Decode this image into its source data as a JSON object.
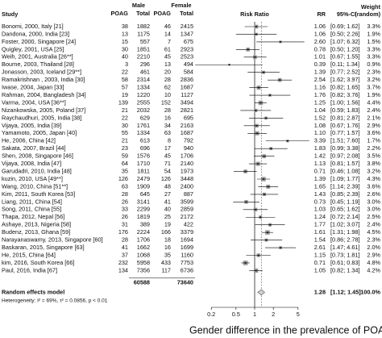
{
  "chart_data": {
    "type": "forest",
    "header": {
      "male": "Male",
      "female": "Female",
      "study": "Study",
      "events": "POAG",
      "total": "Total",
      "plot": "Risk Ratio",
      "rr": "RR",
      "ci": "95%-CI",
      "weight": [
        "Weight",
        "(random)"
      ]
    },
    "studies": [
      "Bonomi, 2000, Italy [21]",
      "Dandona, 2000, India [23]",
      "Foster, 2000, Singapore [24]",
      "Quigley, 2001, USA [25]",
      "Weih, 2001, Australia [26**]",
      "Bourne, 2003, Thailand [28]",
      "Jonasson, 2003, Iceland [29**]",
      "Ramakrishnan , 2003, India [30]",
      "Iwase, 2004, Japan [33]",
      "Rahman, 2004, Bangladesh [34]",
      "Varma, 2004, USA [36**]",
      "Nizankowska, 2005, Poland [37]",
      "Raychaudhuri, 2005, India [38]",
      "Vijaya, 2005, India [39]",
      "Yamamoto, 2005, Japan [40]",
      "He, 2006, China [42]",
      "Sakata, 2007, Brazil [44]",
      "Shen, 2008, Singapore [46]",
      "Vijaya, 2008, India [47]",
      "Garudadri, 2010, India [48]",
      "kuzin, 2010, USA [49**]",
      "Wang, 2010, China [51**]",
      "Kim, 2011, South Korea [53]",
      "Liang, 2011, China [54]",
      "Song, 2011, China [55]",
      "Thapa, 2012, Nepal [56]",
      "Ashaye, 2013, Nigeria [58]",
      "Budenz, 2013, Ghana [59]",
      "Narayanaswamy, 2013, Singapore [60]",
      "Baskaran, 2015, Singapore [63]",
      "He, 2015, China [64]",
      "kim, 2016, South Korea [66]",
      "Paul, 2016, India [67]"
    ],
    "male_events": [
      38,
      13,
      15,
      30,
      40,
      3,
      22,
      58,
      57,
      19,
      139,
      21,
      22,
      30,
      55,
      21,
      23,
      59,
      64,
      35,
      126,
      63,
      28,
      26,
      33,
      26,
      31,
      176,
      28,
      41,
      37,
      232,
      134
    ],
    "male_total": [
      1882,
      1175,
      557,
      1851,
      2210,
      296,
      461,
      2314,
      1334,
      1220,
      2555,
      2032,
      629,
      1761,
      1334,
      613,
      696,
      1576,
      1710,
      1811,
      2479,
      1909,
      645,
      3141,
      2299,
      1819,
      389,
      2224,
      1706,
      1662,
      1068,
      5958,
      7356
    ],
    "female_events": [
      46,
      14,
      7,
      61,
      45,
      13,
      20,
      28,
      62,
      10,
      152,
      28,
      16,
      34,
      63,
      8,
      17,
      45,
      71,
      54,
      126,
      48,
      27,
      41,
      40,
      25,
      19,
      166,
      18,
      16,
      35,
      433,
      117
    ],
    "female_total": [
      2415,
      1347,
      675,
      2923,
      2523,
      494,
      584,
      2836,
      1687,
      1127,
      3494,
      2821,
      695,
      2163,
      1687,
      792,
      940,
      1706,
      2140,
      1973,
      3448,
      2400,
      887,
      3599,
      2859,
      2172,
      422,
      3379,
      1694,
      1699,
      1160,
      7753,
      6736
    ],
    "values": [
      1.06,
      1.06,
      2.6,
      0.78,
      1.01,
      0.39,
      1.39,
      2.54,
      1.16,
      1.76,
      1.25,
      1.04,
      1.52,
      1.08,
      1.1,
      3.39,
      1.83,
      1.42,
      1.13,
      0.71,
      1.39,
      1.65,
      1.43,
      0.73,
      1.03,
      1.24,
      1.77,
      1.61,
      1.54,
      2.61,
      1.15,
      0.71,
      1.05
    ],
    "value_labels": [
      "1.06",
      "1.06",
      "2.60",
      "0.78",
      "1.01",
      "0.39",
      "1.39",
      "2.54",
      "1.16",
      "1.76",
      "1.25",
      "1.04",
      "1.52",
      "1.08",
      "1.10",
      "3.39",
      "1.83",
      "1.42",
      "1.13",
      "0.71",
      "1.39",
      "1.65",
      "1.43",
      "0.73",
      "1.03",
      "1.24",
      "1.77",
      "1.61",
      "1.54",
      "2.61",
      "1.15",
      "0.71",
      "1.05"
    ],
    "ci_low": [
      0.69,
      0.5,
      1.07,
      0.5,
      0.67,
      0.11,
      0.77,
      1.62,
      0.82,
      0.82,
      1.0,
      0.59,
      0.81,
      0.67,
      0.77,
      1.51,
      0.99,
      0.97,
      0.81,
      0.46,
      1.09,
      1.14,
      0.85,
      0.45,
      0.65,
      0.72,
      1.02,
      1.31,
      0.86,
      1.47,
      0.73,
      0.61,
      0.82
    ],
    "ci_high": [
      1.62,
      2.26,
      6.32,
      1.2,
      1.55,
      1.34,
      2.52,
      3.97,
      1.65,
      3.76,
      1.56,
      1.83,
      2.87,
      1.76,
      1.57,
      7.6,
      3.38,
      2.08,
      1.57,
      1.08,
      1.77,
      2.39,
      2.39,
      1.19,
      1.62,
      2.14,
      3.07,
      1.98,
      2.78,
      4.61,
      1.81,
      0.83,
      1.34
    ],
    "ci_labels": [
      "[0.69; 1.62]",
      "[0.50; 2.26]",
      "[1.07; 6.32]",
      "[0.50; 1.20]",
      "[0.67; 1.55]",
      "[0.11; 1.34]",
      "[0.77; 2.52]",
      "[1.62; 3.97]",
      "[0.82; 1.65]",
      "[0.82; 3.76]",
      "[1.00; 1.56]",
      "[0.59; 1.83]",
      "[0.81; 2.87]",
      "[0.67; 1.76]",
      "[0.77; 1.57]",
      "[1.51; 7.60]",
      "[0.99; 3.38]",
      "[0.97; 2.08]",
      "[0.81; 1.57]",
      "[0.46; 1.08]",
      "[1.09; 1.77]",
      "[1.14; 2.39]",
      "[0.85; 2.39]",
      "[0.45; 1.19]",
      "[0.65; 1.62]",
      "[0.72; 2.14]",
      "[1.02; 3.07]",
      "[1.31; 1.98]",
      "[0.86; 2.78]",
      "[1.47; 4.61]",
      "[0.73; 1.81]",
      "[0.61; 0.83]",
      "[0.82; 1.34]"
    ],
    "weights": [
      3.3,
      1.9,
      1.5,
      3.3,
      3.3,
      0.9,
      2.3,
      3.2,
      3.7,
      1.9,
      4.4,
      2.4,
      2.1,
      2.9,
      3.6,
      1.7,
      2.2,
      3.5,
      3.8,
      3.2,
      4.3,
      3.6,
      2.6,
      3.0,
      3.0,
      2.5,
      2.4,
      4.5,
      2.3,
      2.0,
      2.9,
      4.8,
      4.2
    ],
    "weight_labels": [
      "3.3%",
      "1.9%",
      "1.5%",
      "3.3%",
      "3.3%",
      "0.9%",
      "2.3%",
      "3.2%",
      "3.7%",
      "1.9%",
      "4.4%",
      "2.4%",
      "2.1%",
      "2.9%",
      "3.6%",
      "1.7%",
      "2.2%",
      "3.5%",
      "3.8%",
      "3.2%",
      "4.3%",
      "3.6%",
      "2.6%",
      "3.0%",
      "3.0%",
      "2.5%",
      "2.4%",
      "4.5%",
      "2.3%",
      "2.0%",
      "2.9%",
      "4.8%",
      "4.2%"
    ],
    "pooled": {
      "name": "Random effects model",
      "male_total": 60588,
      "female_total": 73640,
      "value": 1.28,
      "value_label": "1.28",
      "ci_low": 1.12,
      "ci_high": 1.45,
      "ci_label": "[1.12; 1.45]",
      "weight": 100,
      "weight_label": "100.0%"
    },
    "heterogeneity": "Heterogeneity: I² = 69%, τ² = 0.0856, p < 0.01",
    "xlim": [
      0.1,
      10
    ],
    "xticks": [
      0.2,
      0.5,
      1,
      2,
      5
    ],
    "log_x": true,
    "reference_line": 1,
    "color": "#9a9a9a",
    "caption": "Gender difference in the prevalence of POAG"
  }
}
